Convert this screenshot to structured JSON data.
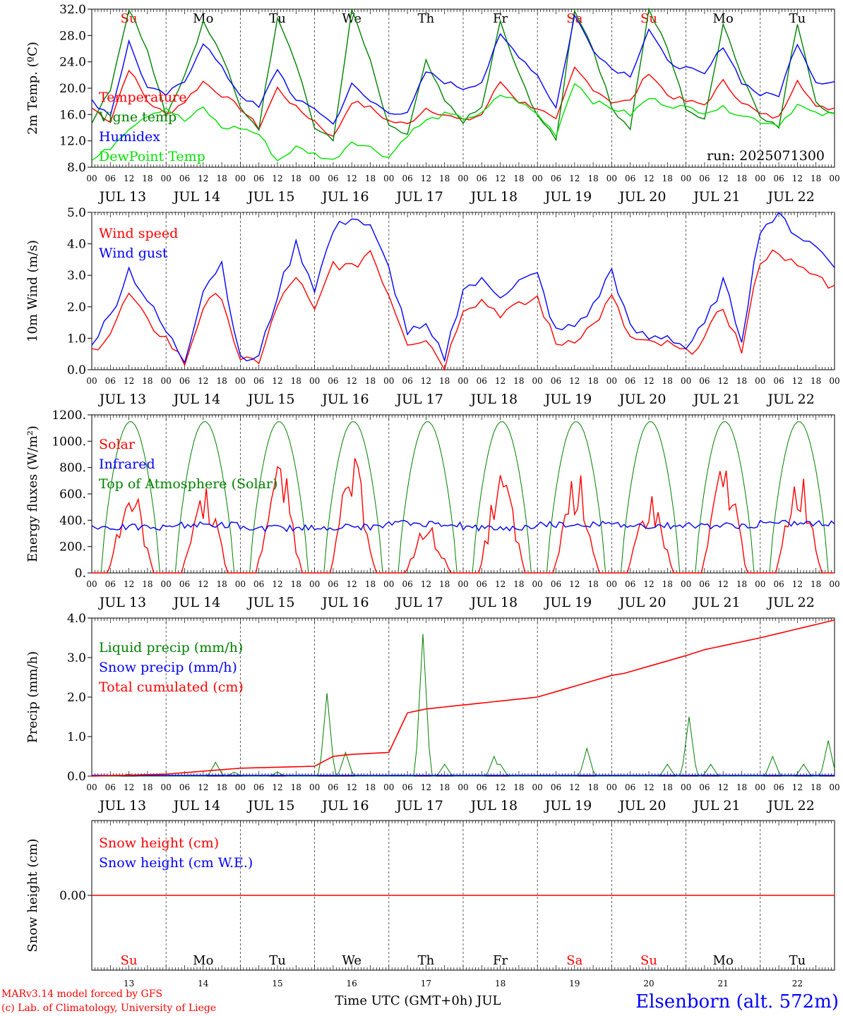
{
  "run_label": "run: 2025071300",
  "footer": {
    "model_line": "MARv3.14 model forced by GFS",
    "lab_line": "(c) Lab. of Climatology, University of Liege",
    "time_axis_label": "Time UTC (GMT+0h) JUL",
    "station": "Elsenborn (alt. 572m)"
  },
  "days": [
    {
      "date": "JUL 13",
      "num": "13",
      "dow": "Su",
      "weekend": true
    },
    {
      "date": "JUL 14",
      "num": "14",
      "dow": "Mo",
      "weekend": false
    },
    {
      "date": "JUL 15",
      "num": "15",
      "dow": "Tu",
      "weekend": false
    },
    {
      "date": "JUL 16",
      "num": "16",
      "dow": "We",
      "weekend": false
    },
    {
      "date": "JUL 17",
      "num": "17",
      "dow": "Th",
      "weekend": false
    },
    {
      "date": "JUL 18",
      "num": "18",
      "dow": "Fr",
      "weekend": false
    },
    {
      "date": "JUL 19",
      "num": "19",
      "dow": "Sa",
      "weekend": true
    },
    {
      "date": "JUL 20",
      "num": "20",
      "dow": "Su",
      "weekend": true
    },
    {
      "date": "JUL 21",
      "num": "21",
      "dow": "Mo",
      "weekend": false
    },
    {
      "date": "JUL 22",
      "num": "22",
      "dow": "Tu",
      "weekend": false
    }
  ],
  "hour_ticks": [
    "00",
    "06",
    "12",
    "18"
  ],
  "end_tick": "00",
  "colors": {
    "red": "#ff0000",
    "blue": "#0000ff",
    "green": "#008000",
    "lightgreen": "#00e000",
    "dark": "#000000",
    "grid": "#555555"
  },
  "chart_data": [
    {
      "type": "line",
      "id": "temp",
      "ylabel": "2m Temp. (ºC)",
      "ylim": [
        8,
        32
      ],
      "yticks": [
        "8.0",
        "12.0",
        "16.0",
        "20.0",
        "24.0",
        "28.0",
        "32.0"
      ],
      "x_hours": [
        0,
        6,
        12,
        18,
        24,
        30,
        36,
        42,
        48,
        54,
        60,
        66,
        72,
        78,
        84,
        90,
        96,
        102,
        108,
        114,
        120,
        126,
        132,
        138,
        144,
        150,
        156,
        162,
        168,
        174,
        180,
        186,
        192,
        198,
        204,
        210,
        216,
        222,
        228,
        234,
        240
      ],
      "series": [
        {
          "name": "Temperature",
          "color": "red",
          "values": [
            17,
            15,
            23,
            18,
            16,
            18,
            21,
            19,
            17,
            14,
            20,
            17,
            15,
            12.5,
            18,
            17,
            15,
            14.5,
            17,
            16,
            15,
            16,
            21,
            18,
            17,
            15,
            23,
            20,
            18,
            18,
            22.5,
            19,
            18,
            17.5,
            21,
            18,
            16,
            15.5,
            21.5,
            17,
            17
          ]
        },
        {
          "name": "Vigne temp",
          "color": "green",
          "values": [
            15,
            20,
            32,
            26,
            16,
            22,
            30,
            25,
            17,
            14,
            31,
            24,
            14,
            12,
            32,
            24,
            14,
            13,
            24,
            18,
            15,
            17,
            30,
            22,
            16,
            12,
            32,
            26,
            17,
            14,
            32,
            26,
            17,
            15,
            30,
            22,
            16,
            14,
            30,
            18,
            16
          ]
        },
        {
          "name": "Humidex",
          "color": "blue",
          "values": [
            18,
            16,
            27,
            20,
            19,
            21,
            27,
            23,
            19,
            17,
            23,
            18,
            17,
            14.5,
            20.5,
            18,
            16.5,
            16,
            22.5,
            21,
            20,
            21,
            28,
            25,
            22,
            17,
            31,
            26,
            23,
            22,
            29,
            24,
            23,
            22,
            26.5,
            21,
            19,
            19,
            27,
            21,
            21
          ]
        },
        {
          "name": "DewPoint Temp",
          "color": "lightgreen",
          "values": [
            9,
            11,
            14,
            16,
            17,
            15,
            17,
            14,
            14,
            13,
            9,
            11,
            10,
            9,
            12,
            11,
            9.5,
            13,
            15,
            16,
            15.5,
            16,
            19,
            18,
            16,
            13,
            21,
            18,
            17,
            16,
            18.5,
            17.5,
            17,
            16.5,
            17,
            16,
            15,
            14.5,
            17.5,
            16,
            16
          ]
        }
      ]
    },
    {
      "type": "line",
      "id": "wind",
      "ylabel": "10m Wind (m/s)",
      "ylim": [
        0,
        5
      ],
      "yticks": [
        "0.0",
        "1.0",
        "2.0",
        "3.0",
        "4.0",
        "5.0"
      ],
      "x_hours": [
        0,
        6,
        12,
        18,
        24,
        30,
        36,
        42,
        48,
        54,
        60,
        66,
        72,
        78,
        84,
        90,
        96,
        102,
        108,
        114,
        120,
        126,
        132,
        138,
        144,
        150,
        156,
        162,
        168,
        174,
        180,
        186,
        192,
        198,
        204,
        210,
        216,
        222,
        228,
        234,
        240
      ],
      "series": [
        {
          "name": "Wind speed",
          "color": "red",
          "values": [
            0.6,
            1.2,
            2.4,
            1.5,
            1,
            0.2,
            2.0,
            2.4,
            0.2,
            0.3,
            2.0,
            3.0,
            1.8,
            3.4,
            3.2,
            3.8,
            2.4,
            0.9,
            1.0,
            0.1,
            2.0,
            2.2,
            1.8,
            2.0,
            2.3,
            0.8,
            1.0,
            1.4,
            2.3,
            1.0,
            0.8,
            0.8,
            0.5,
            1.0,
            2.0,
            0.6,
            3.5,
            3.8,
            3.2,
            3.0,
            2.6
          ]
        },
        {
          "name": "Wind gust",
          "color": "blue",
          "values": [
            0.9,
            1.7,
            3.2,
            2.2,
            1.2,
            0.3,
            2.6,
            3.4,
            0.3,
            0.4,
            2.4,
            4.0,
            2.6,
            4.4,
            4.9,
            4.5,
            3.2,
            1.2,
            1.3,
            0.4,
            2.6,
            2.8,
            2.4,
            2.8,
            3.0,
            1.2,
            1.4,
            2.0,
            3.2,
            1.3,
            1.0,
            1.1,
            0.7,
            1.4,
            2.8,
            1.0,
            4.5,
            4.9,
            4.3,
            3.9,
            3.4
          ]
        }
      ]
    },
    {
      "type": "line",
      "id": "energy",
      "ylabel": "Energy fluxes (W/m²)",
      "ylim": [
        0,
        1200
      ],
      "yticks": [
        "0.",
        "200.",
        "400.",
        "600.",
        "800.",
        "1000.",
        "1200."
      ],
      "days_solar_peak": [
        700,
        700,
        870,
        880,
        380,
        790,
        800,
        620,
        870,
        810
      ],
      "days_ir_mean": [
        345,
        365,
        340,
        350,
        375,
        340,
        370,
        360,
        360,
        375
      ],
      "toa_peak": 1150,
      "series": [
        {
          "name": "Solar",
          "color": "red"
        },
        {
          "name": "Infrared",
          "color": "blue"
        },
        {
          "name": "Top of Atmosphere (Solar)",
          "color": "green"
        }
      ]
    },
    {
      "type": "line",
      "id": "precip",
      "ylabel": "Precip (mm/h)",
      "ylim": [
        0,
        4
      ],
      "yticks": [
        "0.0",
        "1.0",
        "2.0",
        "3.0",
        "4.0"
      ],
      "x_hours": [
        0,
        24,
        48,
        72,
        78,
        84,
        96,
        102,
        108,
        120,
        144,
        168,
        172,
        192,
        198,
        216,
        240
      ],
      "series": [
        {
          "name": "Liquid precip (mm/h)",
          "color": "green",
          "spikes": [
            [
              12,
              0.05
            ],
            [
              40,
              0.35
            ],
            [
              46,
              0.1
            ],
            [
              60,
              0.1
            ],
            [
              76,
              2.1
            ],
            [
              82,
              0.6
            ],
            [
              107,
              3.6
            ],
            [
              114,
              0.3
            ],
            [
              130,
              0.5
            ],
            [
              132,
              0.3
            ],
            [
              160,
              0.7
            ],
            [
              186,
              0.3
            ],
            [
              193,
              1.5
            ],
            [
              200,
              0.3
            ],
            [
              220,
              0.5
            ],
            [
              230,
              0.3
            ],
            [
              238,
              0.9
            ]
          ]
        },
        {
          "name": "Snow precip (mm/h)",
          "color": "blue",
          "values_flat": 0
        },
        {
          "name": "Total cumulated (cm)",
          "color": "red",
          "values": [
            0,
            0.05,
            0.2,
            0.25,
            0.5,
            0.55,
            0.6,
            1.6,
            1.7,
            1.8,
            2.0,
            2.55,
            2.6,
            3.05,
            3.2,
            3.5,
            3.95
          ]
        }
      ]
    },
    {
      "type": "line",
      "id": "snow",
      "ylabel": "Snow height (cm)",
      "ylim": [
        -1,
        1
      ],
      "yticks": [
        "0.00"
      ],
      "series": [
        {
          "name": "Snow height (cm)",
          "color": "red",
          "value": 0
        },
        {
          "name": "Snow height (cm W.E.)",
          "color": "blue",
          "value": 0
        }
      ]
    }
  ]
}
